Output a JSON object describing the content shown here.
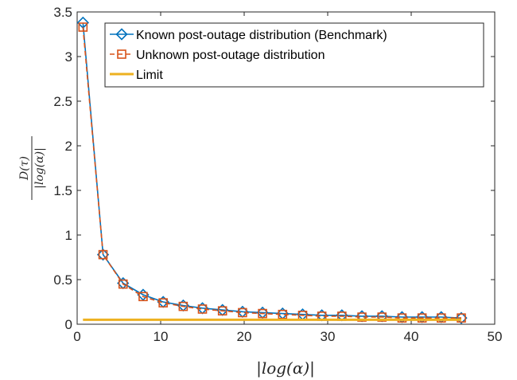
{
  "chart_data": {
    "type": "line",
    "xlabel": "|log(α)|",
    "ylabel_numerator": "D(τ)",
    "ylabel_denominator": "|log(α)|",
    "xlim": [
      0,
      50
    ],
    "ylim": [
      0,
      3.5
    ],
    "x_ticks": [
      "0",
      "10",
      "20",
      "30",
      "40",
      "50"
    ],
    "y_ticks": [
      "0",
      "0.5",
      "1",
      "1.5",
      "2",
      "2.5",
      "3",
      "3.5"
    ],
    "grid": false,
    "legend_position": "top-right",
    "series": [
      {
        "name": "Known post-outage distribution (Benchmark)",
        "color": "#0072BD",
        "marker": "diamond",
        "linestyle": "solid",
        "x": [
          0.7,
          3.1,
          5.5,
          7.9,
          10.3,
          12.7,
          15.0,
          17.4,
          19.8,
          22.2,
          24.6,
          27.0,
          29.3,
          31.7,
          34.1,
          36.5,
          38.9,
          41.3,
          43.6,
          46.0
        ],
        "y": [
          3.38,
          0.78,
          0.46,
          0.33,
          0.25,
          0.21,
          0.18,
          0.16,
          0.14,
          0.13,
          0.12,
          0.11,
          0.1,
          0.1,
          0.09,
          0.09,
          0.08,
          0.08,
          0.08,
          0.07
        ]
      },
      {
        "name": "Unknown post-outage distribution",
        "color": "#D95319",
        "marker": "square",
        "linestyle": "dashed",
        "x": [
          0.7,
          3.1,
          5.5,
          7.9,
          10.3,
          12.7,
          15.0,
          17.4,
          19.8,
          22.2,
          24.6,
          27.0,
          29.3,
          31.7,
          34.1,
          36.5,
          38.9,
          41.3,
          43.6,
          46.0
        ],
        "y": [
          3.33,
          0.78,
          0.45,
          0.31,
          0.24,
          0.2,
          0.17,
          0.15,
          0.13,
          0.12,
          0.11,
          0.1,
          0.09,
          0.09,
          0.08,
          0.08,
          0.07,
          0.07,
          0.07,
          0.07
        ]
      },
      {
        "name": "Limit",
        "color": "#EDB120",
        "marker": "none",
        "linestyle": "solid",
        "x": [
          0.7,
          46.0
        ],
        "y": [
          0.05,
          0.05
        ]
      }
    ]
  }
}
